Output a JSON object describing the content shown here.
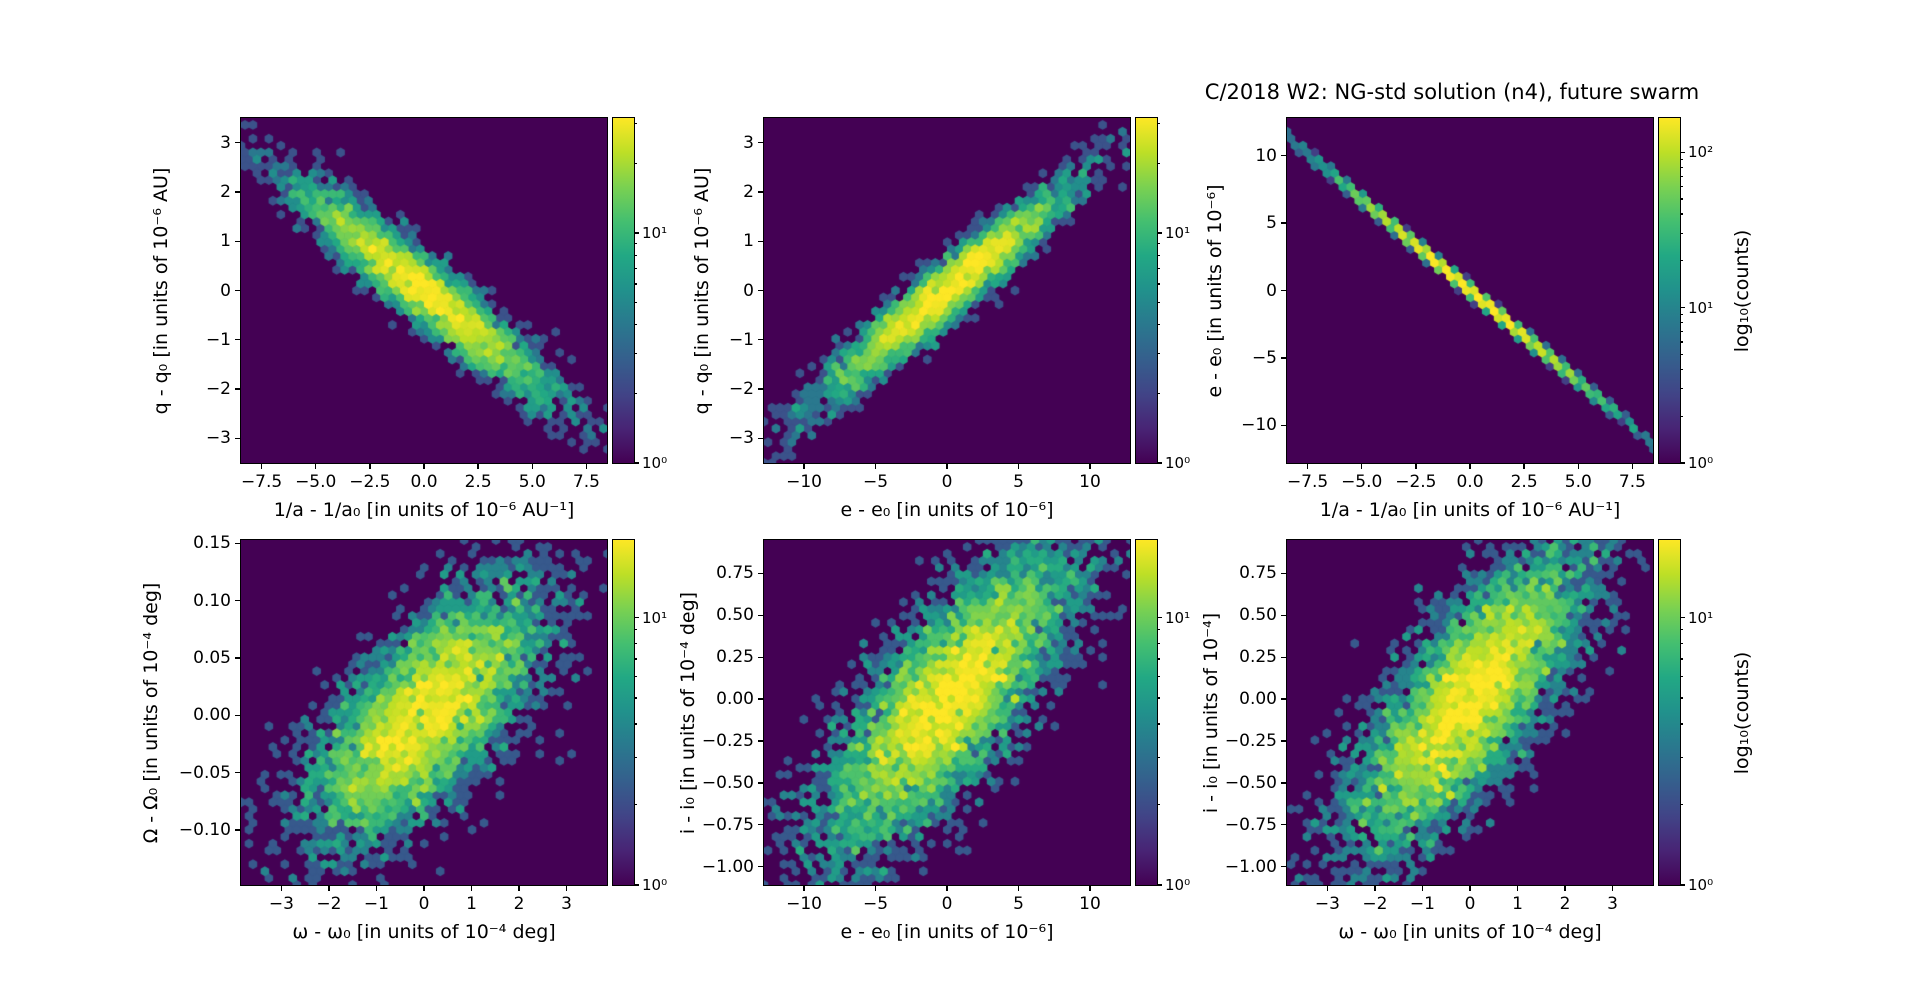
{
  "title": "C/2018 W2: NG-std solution (n4), future swarm",
  "chart_data": [
    {
      "type": "hexbin",
      "panel": "top-left",
      "xlabel": "1/a - 1/a₀ [in units of 10⁻⁶ AU⁻¹]",
      "ylabel": "q - q₀ [in units of 10⁻⁶ AU]",
      "xlim": [
        -8.45,
        8.45
      ],
      "ylim": [
        -3.5,
        3.5
      ],
      "xticks": [
        -7.5,
        -5.0,
        -2.5,
        0.0,
        2.5,
        5.0,
        7.5
      ],
      "xtick_labels": [
        "−7.5",
        "−5.0",
        "−2.5",
        "0.0",
        "2.5",
        "5.0",
        "7.5"
      ],
      "yticks": [
        3,
        2,
        1,
        0,
        -1,
        -2,
        -3
      ],
      "ytick_labels": [
        "3",
        "2",
        "1",
        "0",
        "−1",
        "−2",
        "−3"
      ],
      "distribution": {
        "sigma_x": 2.9,
        "sigma_y": 1.08,
        "rho": -0.945,
        "n": 4000,
        "seed": 11
      },
      "colorbar": {
        "log_max": 1.5,
        "ticks": [
          {
            "log": 1,
            "label": "10¹"
          },
          {
            "log": 0,
            "label": "10⁰"
          }
        ]
      }
    },
    {
      "type": "hexbin",
      "panel": "top-middle",
      "xlabel": "e - e₀ [in units of 10⁻⁶]",
      "ylabel": "q - q₀ [in units of 10⁻⁶ AU]",
      "xlim": [
        -12.8,
        12.8
      ],
      "ylim": [
        -3.5,
        3.5
      ],
      "xticks": [
        -10,
        -5,
        0,
        5,
        10
      ],
      "xtick_labels": [
        "−10",
        "−5",
        "0",
        "5",
        "10"
      ],
      "yticks": [
        3,
        2,
        1,
        0,
        -1,
        -2,
        -3
      ],
      "ytick_labels": [
        "3",
        "2",
        "1",
        "0",
        "−1",
        "−2",
        "−3"
      ],
      "distribution": {
        "sigma_x": 4.3,
        "sigma_y": 1.08,
        "rho": 0.955,
        "n": 3800,
        "seed": 22
      },
      "colorbar": {
        "log_max": 1.5,
        "ticks": [
          {
            "log": 1,
            "label": "10¹"
          },
          {
            "log": 0,
            "label": "10⁰"
          }
        ]
      }
    },
    {
      "type": "hexbin",
      "panel": "top-right",
      "xlabel": "1/a - 1/a₀ [in units of 10⁻⁶ AU⁻¹]",
      "ylabel": "e - e₀ [in units of 10⁻⁶]",
      "xlim": [
        -8.45,
        8.45
      ],
      "ylim": [
        -12.8,
        12.8
      ],
      "xticks": [
        -7.5,
        -5.0,
        -2.5,
        0.0,
        2.5,
        5.0,
        7.5
      ],
      "xtick_labels": [
        "−7.5",
        "−5.0",
        "−2.5",
        "0.0",
        "2.5",
        "5.0",
        "7.5"
      ],
      "yticks": [
        10,
        5,
        0,
        -5,
        -10
      ],
      "ytick_labels": [
        "10",
        "5",
        "0",
        "−5",
        "−10"
      ],
      "distribution": {
        "sigma_x": 2.9,
        "sigma_y": 3.92,
        "rho": -0.9995,
        "n": 5000,
        "seed": 33
      },
      "colorbar": {
        "log_max": 2.22,
        "ticks": [
          {
            "log": 2,
            "label": "10²"
          },
          {
            "log": 1,
            "label": "10¹"
          },
          {
            "log": 0,
            "label": "10⁰"
          }
        ],
        "label": "log₁₀(counts)"
      }
    },
    {
      "type": "hexbin",
      "panel": "bottom-left",
      "xlabel": "ω - ω₀ [in units of 10⁻⁴ deg]",
      "ylabel": "Ω - Ω₀ [in units of 10⁻⁴ deg]",
      "xlim": [
        -3.85,
        3.85
      ],
      "ylim": [
        -0.148,
        0.153
      ],
      "xticks": [
        -3,
        -2,
        -1,
        0,
        1,
        2,
        3
      ],
      "xtick_labels": [
        "−3",
        "−2",
        "−1",
        "0",
        "1",
        "2",
        "3"
      ],
      "yticks": [
        0.15,
        0.1,
        0.05,
        0.0,
        -0.05,
        -0.1
      ],
      "ytick_labels": [
        "0.15",
        "0.10",
        "0.05",
        "0.00",
        "−0.05",
        "−0.10"
      ],
      "distribution": {
        "sigma_x": 1.2,
        "sigma_y": 0.054,
        "rho": 0.67,
        "n": 5500,
        "seed": 44
      },
      "colorbar": {
        "log_max": 1.29,
        "ticks": [
          {
            "log": 1,
            "label": "10¹"
          },
          {
            "log": 0,
            "label": "10⁰"
          }
        ]
      }
    },
    {
      "type": "hexbin",
      "panel": "bottom-middle",
      "xlabel": "e - e₀ [in units of 10⁻⁶]",
      "ylabel": "i - i₀ [in units of 10⁻⁴ deg]",
      "xlim": [
        -12.8,
        12.8
      ],
      "ylim": [
        -1.11,
        0.95
      ],
      "xticks": [
        -10,
        -5,
        0,
        5,
        10
      ],
      "xtick_labels": [
        "−10",
        "−5",
        "0",
        "5",
        "10"
      ],
      "yticks": [
        0.75,
        0.5,
        0.25,
        0.0,
        -0.25,
        -0.5,
        -0.75,
        -1.0
      ],
      "ytick_labels": [
        "0.75",
        "0.50",
        "0.25",
        "0.00",
        "−0.25",
        "−0.50",
        "−0.75",
        "−1.00"
      ],
      "distribution": {
        "sigma_x": 4.3,
        "sigma_y": 0.44,
        "rho": 0.77,
        "n": 6300,
        "seed": 55
      },
      "colorbar": {
        "log_max": 1.29,
        "ticks": [
          {
            "log": 1,
            "label": "10¹"
          },
          {
            "log": 0,
            "label": "10⁰"
          }
        ]
      }
    },
    {
      "type": "hexbin",
      "panel": "bottom-right",
      "xlabel": "ω - ω₀ [in units of 10⁻⁴ deg]",
      "ylabel": "i - i₀ [in units of 10⁻⁴]",
      "xlim": [
        -3.85,
        3.85
      ],
      "ylim": [
        -1.11,
        0.95
      ],
      "xticks": [
        -3,
        -2,
        -1,
        0,
        1,
        2,
        3
      ],
      "xtick_labels": [
        "−3",
        "−2",
        "−1",
        "0",
        "1",
        "2",
        "3"
      ],
      "yticks": [
        0.75,
        0.5,
        0.25,
        0.0,
        -0.25,
        -0.5,
        -0.75,
        -1.0
      ],
      "ytick_labels": [
        "0.75",
        "0.50",
        "0.25",
        "0.00",
        "−0.25",
        "−0.50",
        "−0.75",
        "−1.00"
      ],
      "distribution": {
        "sigma_x": 1.2,
        "sigma_y": 0.44,
        "rho": 0.77,
        "n": 6000,
        "seed": 66
      },
      "colorbar": {
        "log_max": 1.29,
        "ticks": [
          {
            "log": 1,
            "label": "10¹"
          },
          {
            "log": 0,
            "label": "10⁰"
          }
        ],
        "label": "log₁₀(counts)"
      }
    }
  ],
  "colorbar_colormap": "viridis",
  "colorbar_scale": "log"
}
